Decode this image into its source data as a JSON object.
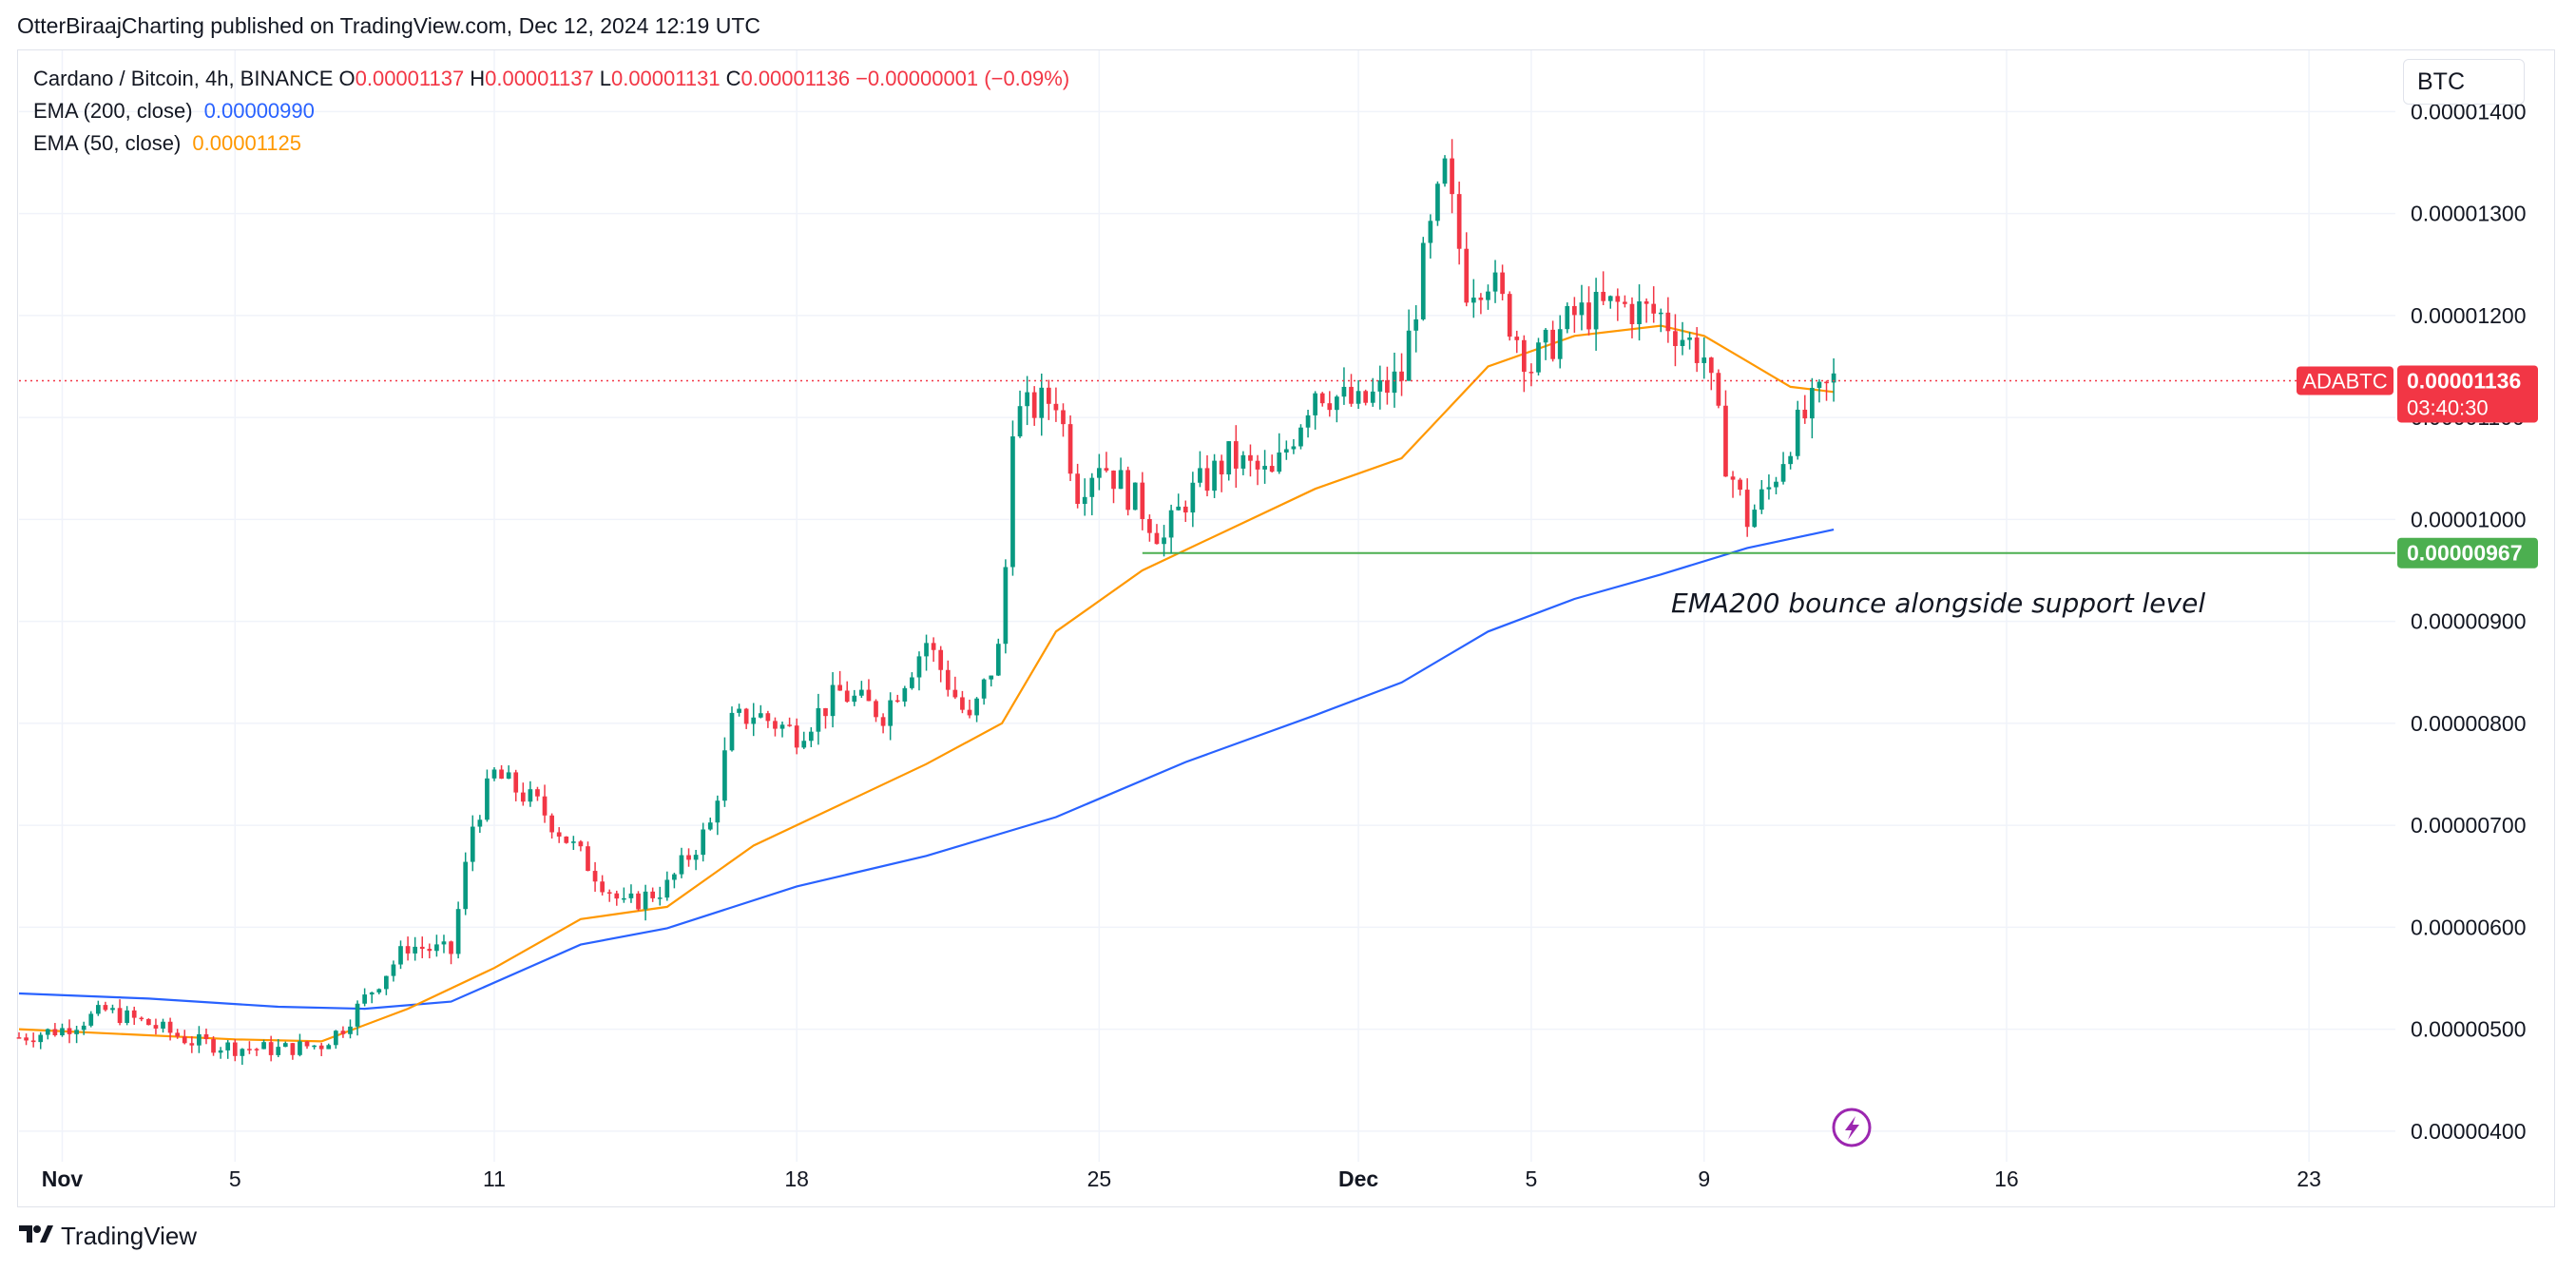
{
  "header": {
    "published_text": "OtterBiraajCharting published on TradingView.com, Dec 12, 2024 12:19 UTC"
  },
  "legend": {
    "symbol": "Cardano / Bitcoin, 4h, BINANCE",
    "o_label": "O",
    "o_value": "0.00001137",
    "h_label": "H",
    "h_value": "0.00001137",
    "l_label": "L",
    "l_value": "0.00001131",
    "c_label": "C",
    "c_value": "0.00001136",
    "change": "−0.00000001 (−0.09%)",
    "ema200_label": "EMA (200, close)",
    "ema200_value": "0.00000990",
    "ema50_label": "EMA (50, close)",
    "ema50_value": "0.00001125"
  },
  "currency_button": "BTC",
  "annotation": "EMA200 bounce alongside support level",
  "footer": {
    "brand": "TradingView"
  },
  "colors": {
    "up": "#089981",
    "down": "#f23645",
    "ema200": "#2962ff",
    "ema50": "#ff9800",
    "support": "#4caf50",
    "grid": "#f0f3fa"
  },
  "chart_data": {
    "type": "candlestick",
    "symbol": "ADABTC",
    "timeframe": "4h",
    "y_range": [
      3.7e-06,
      1.46e-05
    ],
    "y_ticks": [
      "0.00001400",
      "0.00001300",
      "0.00001200",
      "0.00001100",
      "0.00001000",
      "0.00000900",
      "0.00000800",
      "0.00000700",
      "0.00000600",
      "0.00000500",
      "0.00000400"
    ],
    "y_tick_values": [
      1.4e-05,
      1.3e-05,
      1.2e-05,
      1.1e-05,
      1e-05,
      9e-06,
      8e-06,
      7e-06,
      6e-06,
      5e-06,
      4e-06
    ],
    "x_ticks": [
      {
        "label": "Nov",
        "date": "2024-11-01",
        "bold": true
      },
      {
        "label": "5",
        "date": "2024-11-05"
      },
      {
        "label": "11",
        "date": "2024-11-11"
      },
      {
        "label": "18",
        "date": "2024-11-18"
      },
      {
        "label": "25",
        "date": "2024-11-25"
      },
      {
        "label": "Dec",
        "date": "2024-12-01",
        "bold": true
      },
      {
        "label": "5",
        "date": "2024-12-05"
      },
      {
        "label": "9",
        "date": "2024-12-09"
      },
      {
        "label": "16",
        "date": "2024-12-16"
      },
      {
        "label": "23",
        "date": "2024-12-23"
      }
    ],
    "x_range": [
      "2024-10-31",
      "2024-12-25"
    ],
    "last_price": {
      "label": "ADABTC",
      "value": "0.00001136",
      "countdown": "03:40:30"
    },
    "support": {
      "value": 9.67e-06,
      "label": "0.00000967",
      "from": "2024-11-26",
      "to": "2024-12-25"
    },
    "close_path": [
      [
        "2024-10-31",
        4.92e-06
      ],
      [
        "2024-11-01",
        5e-06
      ],
      [
        "2024-11-02",
        5.18e-06
      ],
      [
        "2024-11-03",
        5.05e-06
      ],
      [
        "2024-11-04",
        4.88e-06
      ],
      [
        "2024-11-05",
        4.82e-06
      ],
      [
        "2024-11-06",
        4.8e-06
      ],
      [
        "2024-11-07",
        4.85e-06
      ],
      [
        "2024-11-07T12",
        5.02e-06
      ],
      [
        "2024-11-08",
        5.3e-06
      ],
      [
        "2024-11-09",
        5.82e-06
      ],
      [
        "2024-11-10",
        5.75e-06
      ],
      [
        "2024-11-10T12",
        7e-06
      ],
      [
        "2024-11-11",
        7.5e-06
      ],
      [
        "2024-11-12",
        7.2e-06
      ],
      [
        "2024-11-13",
        6.7e-06
      ],
      [
        "2024-11-14",
        6.2e-06
      ],
      [
        "2024-11-15",
        6.4e-06
      ],
      [
        "2024-11-16",
        7e-06
      ],
      [
        "2024-11-16T12",
        8e-06
      ],
      [
        "2024-11-17",
        8.1e-06
      ],
      [
        "2024-11-18",
        7.9e-06
      ],
      [
        "2024-11-19",
        8.3e-06
      ],
      [
        "2024-11-20",
        8.1e-06
      ],
      [
        "2024-11-21",
        8.8e-06
      ],
      [
        "2024-11-22",
        8e-06
      ],
      [
        "2024-11-22T18",
        8.8e-06
      ],
      [
        "2024-11-23",
        1.1e-05
      ],
      [
        "2024-11-24",
        1.12e-05
      ],
      [
        "2024-11-24T12",
        1.03e-05
      ],
      [
        "2024-11-25",
        1.06e-05
      ],
      [
        "2024-11-26",
        1.01e-05
      ],
      [
        "2024-11-26T12",
        9.8e-06
      ],
      [
        "2024-11-27",
        1.02e-05
      ],
      [
        "2024-11-28",
        1.06e-05
      ],
      [
        "2024-11-29",
        1.04e-05
      ],
      [
        "2024-11-30",
        1.13e-05
      ],
      [
        "2024-12-01",
        1.11e-05
      ],
      [
        "2024-12-02",
        1.14e-05
      ],
      [
        "2024-12-02T12",
        1.25e-05
      ],
      [
        "2024-12-03",
        1.34e-05
      ],
      [
        "2024-12-03T12",
        1.23e-05
      ],
      [
        "2024-12-04",
        1.24e-05
      ],
      [
        "2024-12-05",
        1.15e-05
      ],
      [
        "2024-12-06",
        1.2e-05
      ],
      [
        "2024-12-07",
        1.21e-05
      ],
      [
        "2024-12-08",
        1.2e-05
      ],
      [
        "2024-12-09",
        1.16e-05
      ],
      [
        "2024-12-09T12",
        1.06e-05
      ],
      [
        "2024-12-10",
        1e-05
      ],
      [
        "2024-12-10T12",
        1.03e-05
      ],
      [
        "2024-12-11",
        1.08e-05
      ],
      [
        "2024-12-11T12",
        1.11e-05
      ],
      [
        "2024-12-12",
        1.136e-05
      ]
    ],
    "ema50": [
      [
        "2024-10-31",
        5e-06
      ],
      [
        "2024-11-05",
        4.9e-06
      ],
      [
        "2024-11-07",
        4.88e-06
      ],
      [
        "2024-11-09",
        5.2e-06
      ],
      [
        "2024-11-11",
        5.6e-06
      ],
      [
        "2024-11-13",
        6.08e-06
      ],
      [
        "2024-11-15",
        6.2e-06
      ],
      [
        "2024-11-17",
        6.8e-06
      ],
      [
        "2024-11-19",
        7.2e-06
      ],
      [
        "2024-11-21",
        7.6e-06
      ],
      [
        "2024-11-22T18",
        8e-06
      ],
      [
        "2024-11-24",
        8.9e-06
      ],
      [
        "2024-11-26",
        9.5e-06
      ],
      [
        "2024-11-28",
        9.9e-06
      ],
      [
        "2024-11-30",
        1.03e-05
      ],
      [
        "2024-12-02",
        1.06e-05
      ],
      [
        "2024-12-04",
        1.15e-05
      ],
      [
        "2024-12-06",
        1.18e-05
      ],
      [
        "2024-12-08",
        1.19e-05
      ],
      [
        "2024-12-09",
        1.18e-05
      ],
      [
        "2024-12-10",
        1.155e-05
      ],
      [
        "2024-12-11",
        1.13e-05
      ],
      [
        "2024-12-12",
        1.125e-05
      ]
    ],
    "ema200": [
      [
        "2024-10-31",
        5.35e-06
      ],
      [
        "2024-11-03",
        5.3e-06
      ],
      [
        "2024-11-06",
        5.22e-06
      ],
      [
        "2024-11-08",
        5.2e-06
      ],
      [
        "2024-11-10",
        5.27e-06
      ],
      [
        "2024-11-13",
        5.83e-06
      ],
      [
        "2024-11-15",
        5.99e-06
      ],
      [
        "2024-11-18",
        6.4e-06
      ],
      [
        "2024-11-21",
        6.7e-06
      ],
      [
        "2024-11-24",
        7.08e-06
      ],
      [
        "2024-11-27",
        7.62e-06
      ],
      [
        "2024-11-30",
        8.08e-06
      ],
      [
        "2024-12-02",
        8.4e-06
      ],
      [
        "2024-12-04",
        8.9e-06
      ],
      [
        "2024-12-06",
        9.22e-06
      ],
      [
        "2024-12-08",
        9.46e-06
      ],
      [
        "2024-12-10",
        9.72e-06
      ],
      [
        "2024-12-12",
        9.9e-06
      ]
    ]
  }
}
